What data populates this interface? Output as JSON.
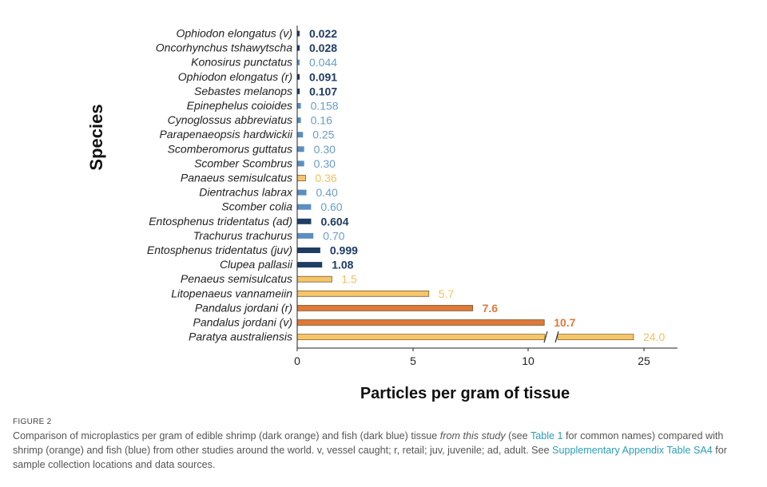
{
  "chart_data": {
    "type": "bar",
    "orientation": "horizontal",
    "xlabel": "Particles per gram of tissue",
    "ylabel": "Species",
    "xlim": [
      0,
      25
    ],
    "x_ticks": [
      "0",
      "5",
      "10",
      "25"
    ],
    "axis_break": "x between 10 and 25",
    "grid": false,
    "colors": {
      "dark_blue": "#1f3c63",
      "blue": "#5b8fc0",
      "dark_orange": "#e0783a",
      "orange": "#f5c56a"
    },
    "label_colors": {
      "dark_blue": "#1f3c63",
      "blue": "#6b9cc9",
      "dark_orange": "#e0783a",
      "orange": "#f0c15c"
    },
    "bars": [
      {
        "category": "Ophiodon elongatus (v)",
        "value": 0.022,
        "label": "0.022",
        "group": "dark_blue"
      },
      {
        "category": "Oncorhynchus tshawytscha",
        "value": 0.028,
        "label": "0.028",
        "group": "dark_blue"
      },
      {
        "category": "Konosirus punctatus",
        "value": 0.044,
        "label": "0.044",
        "group": "blue"
      },
      {
        "category": "Ophiodon elongatus (r)",
        "value": 0.091,
        "label": "0.091",
        "group": "dark_blue"
      },
      {
        "category": "Sebastes melanops",
        "value": 0.107,
        "label": "0.107",
        "group": "dark_blue"
      },
      {
        "category": "Epinephelus coioides",
        "value": 0.158,
        "label": "0.158",
        "group": "blue"
      },
      {
        "category": "Cynoglossus abbreviatus",
        "value": 0.16,
        "label": "0.16",
        "group": "blue"
      },
      {
        "category": "Parapenaeopsis hardwickii",
        "value": 0.25,
        "label": "0.25",
        "group": "blue"
      },
      {
        "category": "Scomberomorus guttatus",
        "value": 0.3,
        "label": "0.30",
        "group": "blue"
      },
      {
        "category": "Scomber Scombrus",
        "value": 0.3,
        "label": "0.30",
        "group": "blue"
      },
      {
        "category": "Panaeus semisulcatus",
        "value": 0.36,
        "label": "0.36",
        "group": "orange"
      },
      {
        "category": "Dientrachus labrax",
        "value": 0.4,
        "label": "0.40",
        "group": "blue"
      },
      {
        "category": "Scomber colia",
        "value": 0.6,
        "label": "0.60",
        "group": "blue"
      },
      {
        "category": "Entosphenus tridentatus (ad)",
        "value": 0.604,
        "label": "0.604",
        "group": "dark_blue"
      },
      {
        "category": "Trachurus trachurus",
        "value": 0.7,
        "label": "0.70",
        "group": "blue"
      },
      {
        "category": "Entosphenus tridentatus (juv)",
        "value": 0.999,
        "label": "0.999",
        "group": "dark_blue"
      },
      {
        "category": "Clupea pallasii",
        "value": 1.08,
        "label": "1.08",
        "group": "dark_blue"
      },
      {
        "category": "Penaeus semisulcatus",
        "value": 1.5,
        "label": "1.5",
        "group": "orange"
      },
      {
        "category": "Litopenaeus vannameiin",
        "value": 5.7,
        "label": "5.7",
        "group": "orange"
      },
      {
        "category": "Pandalus jordani (r)",
        "value": 7.6,
        "label": "7.6",
        "group": "dark_orange"
      },
      {
        "category": "Pandalus jordani (v)",
        "value": 10.7,
        "label": "10.7",
        "group": "dark_orange"
      },
      {
        "category": "Paratya australiensis",
        "value": 24.0,
        "label": "24.0",
        "group": "orange"
      }
    ]
  },
  "caption": {
    "figure_label": "FIGURE 2",
    "parts": [
      {
        "text": "Comparison of microplastics per gram of edible shrimp (dark orange) and fish (dark blue) tissue ",
        "style": "plain"
      },
      {
        "text": "from this study",
        "style": "italic"
      },
      {
        "text": " (see ",
        "style": "plain"
      },
      {
        "text": "Table 1",
        "style": "link"
      },
      {
        "text": " for common names) compared with shrimp (orange) and fish (blue) from other studies around the world. v, vessel caught; r, retail; juv, juvenile; ad, adult. See ",
        "style": "plain"
      },
      {
        "text": "Supplementary Appendix Table SA4",
        "style": "link"
      },
      {
        "text": " for sample collection locations and data sources.",
        "style": "plain"
      }
    ]
  }
}
